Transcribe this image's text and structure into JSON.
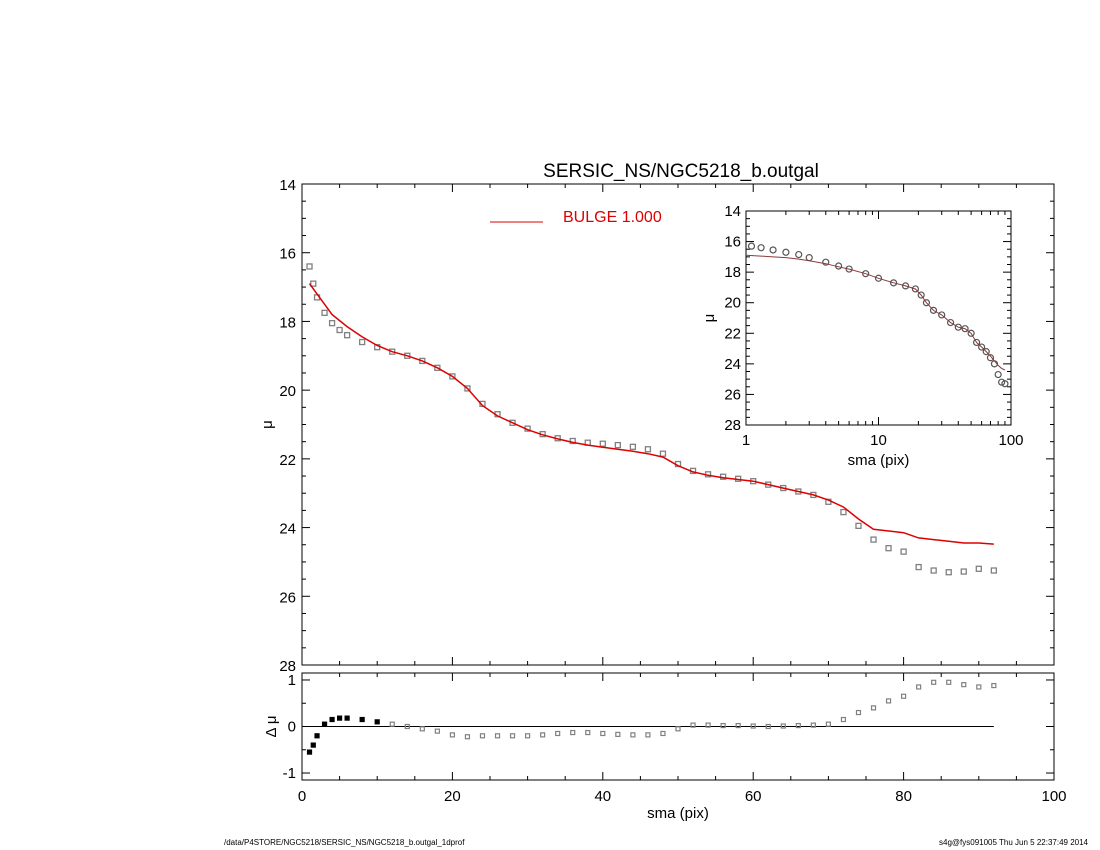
{
  "title": "SERSIC_NS/NGC5218_b.outgal",
  "footer": {
    "path": "/data/P4STORE/NGC5218/SERSIC_NS/NGC5218_b.outgal_1dprof",
    "stamp": "s4g@fys091005  Thu Jun  5 22:37:49 2014"
  },
  "colors": {
    "model": "#dd0000",
    "data": "#808080",
    "axes": "#000000",
    "inset_model": "#8b3a3a"
  },
  "chart_data": [
    {
      "id": "main",
      "type": "scatter",
      "title": "SERSIC_NS/NGC5218_b.outgal",
      "xlabel": "",
      "ylabel": "μ",
      "xlim": [
        0,
        100
      ],
      "ylim": [
        28,
        14
      ],
      "yticks": [
        14,
        16,
        18,
        20,
        22,
        24,
        26,
        28
      ],
      "legend": {
        "label": "BULGE  1.000",
        "placement": "top-center"
      },
      "series": [
        {
          "name": "data",
          "style": "squares",
          "x": [
            1,
            1.5,
            2,
            3,
            4,
            5,
            6,
            8,
            10,
            12,
            14,
            16,
            18,
            20,
            22,
            24,
            26,
            28,
            30,
            32,
            34,
            36,
            38,
            40,
            42,
            44,
            46,
            48,
            50,
            52,
            54,
            56,
            58,
            60,
            62,
            64,
            66,
            68,
            70,
            72,
            74,
            76,
            78,
            80,
            82,
            84,
            86,
            88,
            90,
            92
          ],
          "y": [
            16.4,
            16.9,
            17.3,
            17.75,
            18.05,
            18.25,
            18.4,
            18.6,
            18.75,
            18.88,
            19.0,
            19.15,
            19.35,
            19.6,
            19.95,
            20.4,
            20.7,
            20.95,
            21.12,
            21.28,
            21.4,
            21.48,
            21.53,
            21.56,
            21.6,
            21.65,
            21.72,
            21.85,
            22.15,
            22.35,
            22.45,
            22.52,
            22.58,
            22.65,
            22.75,
            22.85,
            22.95,
            23.05,
            23.25,
            23.55,
            23.95,
            24.35,
            24.6,
            24.7,
            25.15,
            25.25,
            25.3,
            25.28,
            25.2,
            25.25
          ]
        },
        {
          "name": "BULGE  1.000",
          "style": "line",
          "x": [
            1,
            2,
            3,
            4,
            6,
            8,
            10,
            12,
            14,
            16,
            18,
            20,
            22,
            24,
            26,
            28,
            30,
            32,
            34,
            36,
            38,
            40,
            42,
            44,
            46,
            48,
            50,
            52,
            54,
            56,
            58,
            60,
            62,
            64,
            66,
            68,
            70,
            72,
            74,
            76,
            78,
            80,
            82,
            84,
            86,
            88,
            90,
            92
          ],
          "y": [
            16.9,
            17.2,
            17.5,
            17.8,
            18.15,
            18.45,
            18.7,
            18.88,
            19.0,
            19.15,
            19.35,
            19.6,
            19.95,
            20.45,
            20.75,
            20.95,
            21.15,
            21.3,
            21.42,
            21.52,
            21.6,
            21.66,
            21.72,
            21.78,
            21.85,
            21.95,
            22.2,
            22.38,
            22.48,
            22.55,
            22.6,
            22.65,
            22.75,
            22.85,
            22.95,
            23.05,
            23.2,
            23.4,
            23.75,
            24.05,
            24.1,
            24.15,
            24.3,
            24.35,
            24.4,
            24.45,
            24.45,
            24.48
          ]
        }
      ]
    },
    {
      "id": "residual",
      "type": "scatter",
      "xlabel": "sma (pix)",
      "ylabel": "Δ μ",
      "xlim": [
        0,
        100
      ],
      "ylim": [
        -1.15,
        1.15
      ],
      "xticks": [
        0,
        20,
        40,
        60,
        80,
        100
      ],
      "yticks": [
        1,
        0,
        -1
      ],
      "series": [
        {
          "name": "residual",
          "style": "squares",
          "x": [
            1,
            1.5,
            2,
            3,
            4,
            5,
            6,
            8,
            10,
            12,
            14,
            16,
            18,
            20,
            22,
            24,
            26,
            28,
            30,
            32,
            34,
            36,
            38,
            40,
            42,
            44,
            46,
            48,
            50,
            52,
            54,
            56,
            58,
            60,
            62,
            64,
            66,
            68,
            70,
            72,
            74,
            76,
            78,
            80,
            82,
            84,
            86,
            88,
            90,
            92
          ],
          "y": [
            -0.55,
            -0.4,
            -0.2,
            0.05,
            0.15,
            0.18,
            0.18,
            0.15,
            0.1,
            0.05,
            0.0,
            -0.05,
            -0.1,
            -0.18,
            -0.22,
            -0.2,
            -0.2,
            -0.2,
            -0.2,
            -0.18,
            -0.15,
            -0.13,
            -0.13,
            -0.15,
            -0.17,
            -0.18,
            -0.18,
            -0.15,
            -0.05,
            0.03,
            0.03,
            0.02,
            0.02,
            0.01,
            0.0,
            0.01,
            0.02,
            0.03,
            0.05,
            0.15,
            0.3,
            0.4,
            0.55,
            0.65,
            0.85,
            0.95,
            0.95,
            0.9,
            0.85,
            0.88
          ]
        },
        {
          "name": "zero",
          "style": "line",
          "x": [
            0,
            92
          ],
          "y": [
            0,
            0
          ]
        }
      ]
    },
    {
      "id": "inset",
      "type": "line",
      "xlabel": "sma (pix)",
      "ylabel": "μ",
      "xscale": "log",
      "xlim": [
        1,
        100
      ],
      "ylim": [
        28,
        14
      ],
      "xticks": [
        1,
        10,
        100
      ],
      "yticks": [
        14,
        16,
        18,
        20,
        22,
        24,
        26,
        28
      ],
      "series": [
        {
          "name": "data",
          "style": "circles",
          "x": [
            1.1,
            1.3,
            1.6,
            2,
            2.5,
            3,
            4,
            5,
            6,
            8,
            10,
            13,
            16,
            19,
            21,
            23,
            26,
            30,
            35,
            40,
            45,
            50,
            55,
            60,
            65,
            70,
            75,
            80,
            85,
            90
          ],
          "y": [
            16.3,
            16.4,
            16.55,
            16.7,
            16.85,
            17.05,
            17.35,
            17.6,
            17.8,
            18.1,
            18.4,
            18.7,
            18.9,
            19.1,
            19.5,
            20.0,
            20.5,
            20.8,
            21.3,
            21.6,
            21.7,
            22.0,
            22.6,
            22.9,
            23.2,
            23.6,
            24.0,
            24.7,
            25.2,
            25.3
          ]
        },
        {
          "name": "model",
          "style": "line",
          "x": [
            1,
            1.3,
            1.6,
            2,
            2.5,
            3,
            4,
            5,
            6,
            8,
            10,
            13,
            16,
            19,
            21,
            23,
            26,
            30,
            35,
            40,
            45,
            50,
            55,
            60,
            65,
            70,
            75,
            80,
            85,
            90
          ],
          "y": [
            16.9,
            16.95,
            17.0,
            17.05,
            17.15,
            17.25,
            17.45,
            17.65,
            17.8,
            18.1,
            18.4,
            18.7,
            18.9,
            19.1,
            19.5,
            20.0,
            20.5,
            20.8,
            21.3,
            21.6,
            21.7,
            22.0,
            22.6,
            22.9,
            23.2,
            23.5,
            23.8,
            24.1,
            24.3,
            24.4
          ]
        }
      ]
    }
  ]
}
